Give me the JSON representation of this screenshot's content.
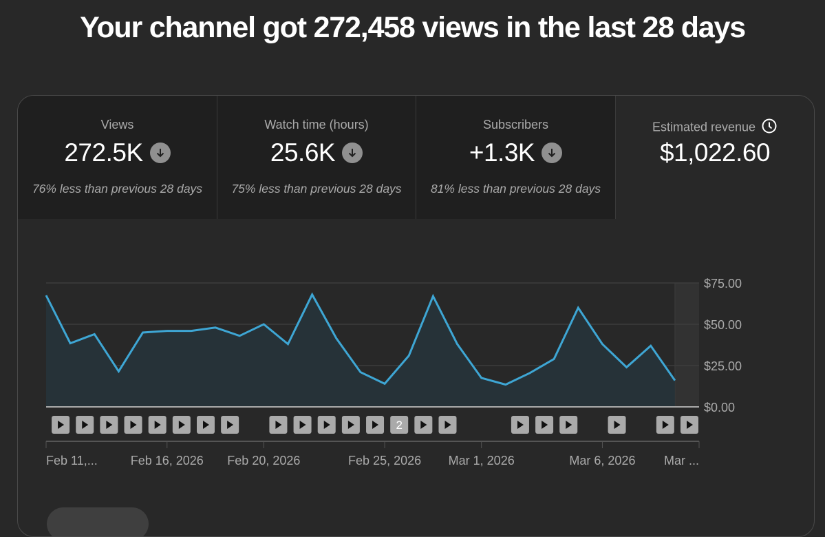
{
  "headline": "Your channel got 272,458 views in the last 28 days",
  "tabs": [
    {
      "label": "Views",
      "value": "272.5K",
      "trend_icon": "arrow-down-circle-icon",
      "comparison": "76% less than previous 28 days",
      "selected": false
    },
    {
      "label": "Watch time (hours)",
      "value": "25.6K",
      "trend_icon": "arrow-down-circle-icon",
      "comparison": "75% less than previous 28 days",
      "selected": false
    },
    {
      "label": "Subscribers",
      "value": "+1.3K",
      "trend_icon": "arrow-down-circle-icon",
      "comparison": "81% less than previous 28 days",
      "selected": false
    },
    {
      "label": "Estimated revenue",
      "value": "$1,022.60",
      "info_icon": "clock-icon",
      "selected": true
    }
  ],
  "chart_data": {
    "type": "area",
    "title": "Estimated revenue",
    "xlabel": "",
    "ylabel": "Estimated revenue",
    "ylim": [
      0,
      75
    ],
    "yticks": [
      "$0.00",
      "$25.00",
      "$50.00",
      "$75.00"
    ],
    "ytick_values": [
      0,
      25,
      50,
      75
    ],
    "grid": true,
    "x": [
      "Feb 11, 2026",
      "Feb 12, 2026",
      "Feb 13, 2026",
      "Feb 14, 2026",
      "Feb 15, 2026",
      "Feb 16, 2026",
      "Feb 17, 2026",
      "Feb 18, 2026",
      "Feb 19, 2026",
      "Feb 20, 2026",
      "Feb 21, 2026",
      "Feb 22, 2026",
      "Feb 23, 2026",
      "Feb 24, 2026",
      "Feb 25, 2026",
      "Feb 26, 2026",
      "Feb 27, 2026",
      "Feb 28, 2026",
      "Mar 1, 2026",
      "Mar 2, 2026",
      "Mar 3, 2026",
      "Mar 4, 2026",
      "Mar 5, 2026",
      "Mar 6, 2026",
      "Mar 7, 2026",
      "Mar 8, 2026",
      "Mar 9, 2026"
    ],
    "values": [
      67.5,
      38.5,
      44,
      21.5,
      45,
      46,
      46,
      48,
      43,
      50,
      38,
      68,
      41.5,
      21,
      14,
      31,
      67,
      38,
      17.5,
      13.5,
      20.5,
      29,
      60,
      38,
      24,
      37,
      16
    ],
    "xtick_labels": [
      {
        "index": 0,
        "label": "Feb 11,..."
      },
      {
        "index": 5,
        "label": "Feb 16, 2026"
      },
      {
        "index": 9,
        "label": "Feb 20, 2026"
      },
      {
        "index": 14,
        "label": "Feb 25, 2026"
      },
      {
        "index": 18,
        "label": "Mar 1, 2026"
      },
      {
        "index": 23,
        "label": "Mar 6, 2026"
      },
      {
        "index": 27,
        "label": "Mar ..."
      }
    ],
    "line_color": "#3ea6d4",
    "fill_color": "#263238",
    "incomplete_region_start_index": 26,
    "video_markers": [
      {
        "index": 0.6,
        "label": ""
      },
      {
        "index": 1.6,
        "label": ""
      },
      {
        "index": 2.6,
        "label": ""
      },
      {
        "index": 3.6,
        "label": ""
      },
      {
        "index": 4.6,
        "label": ""
      },
      {
        "index": 5.6,
        "label": ""
      },
      {
        "index": 6.6,
        "label": ""
      },
      {
        "index": 7.6,
        "label": ""
      },
      {
        "index": 9.6,
        "label": ""
      },
      {
        "index": 10.6,
        "label": ""
      },
      {
        "index": 11.6,
        "label": ""
      },
      {
        "index": 12.6,
        "label": ""
      },
      {
        "index": 13.6,
        "label": ""
      },
      {
        "index": 14.6,
        "label": "2"
      },
      {
        "index": 15.6,
        "label": ""
      },
      {
        "index": 16.6,
        "label": ""
      },
      {
        "index": 19.6,
        "label": ""
      },
      {
        "index": 20.6,
        "label": ""
      },
      {
        "index": 21.6,
        "label": ""
      },
      {
        "index": 23.6,
        "label": ""
      },
      {
        "index": 25.6,
        "label": ""
      },
      {
        "index": 26.6,
        "label": ""
      }
    ]
  },
  "colors": {
    "background": "#282828",
    "tab_background": "#1f1f1f",
    "accent_line": "#3ea6d4",
    "muted_text": "#aaaaaa",
    "trend_icon_bg": "#909090"
  }
}
